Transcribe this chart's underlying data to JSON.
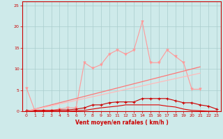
{
  "xlabel": "Vent moyen/en rafales ( km/h )",
  "background_color": "#ceeaea",
  "grid_color": "#aacccc",
  "x_values": [
    0,
    1,
    2,
    3,
    4,
    5,
    6,
    7,
    8,
    9,
    10,
    11,
    12,
    13,
    14,
    15,
    16,
    17,
    18,
    19,
    20,
    21,
    22,
    23
  ],
  "ylim": [
    0,
    26
  ],
  "xlim": [
    -0.5,
    23.5
  ],
  "yticks": [
    0,
    5,
    10,
    15,
    20,
    25
  ],
  "xticks": [
    0,
    1,
    2,
    3,
    4,
    5,
    6,
    7,
    8,
    9,
    10,
    11,
    12,
    13,
    14,
    15,
    16,
    17,
    18,
    19,
    20,
    21,
    22,
    23
  ],
  "line_rafales_y": [
    5.5,
    0.2,
    0.2,
    0.2,
    0.5,
    0.8,
    0.8,
    11.5,
    10.2,
    11.0,
    13.5,
    14.5,
    13.5,
    14.5,
    21.2,
    11.5,
    11.5,
    14.5,
    13.0,
    11.5,
    5.2,
    5.2,
    null,
    null
  ],
  "line_rafales_color": "#ff9999",
  "line_moyen_y": [
    0.2,
    0.2,
    0.2,
    0.2,
    0.3,
    0.3,
    0.5,
    0.8,
    1.5,
    1.5,
    2.0,
    2.2,
    2.2,
    2.2,
    3.0,
    3.0,
    3.0,
    3.0,
    2.5,
    2.0,
    2.0,
    1.5,
    1.2,
    0.5
  ],
  "line_moyen_color": "#cc0000",
  "line_trend1_x": [
    0,
    21
  ],
  "line_trend1_y": [
    0.0,
    10.5
  ],
  "line_trend1_color": "#ff7777",
  "line_trend2_x": [
    0,
    21
  ],
  "line_trend2_y": [
    0.0,
    9.0
  ],
  "line_trend2_color": "#ffbbbb",
  "line_bottom_y": [
    0.0,
    0.0,
    0.0,
    0.0,
    0.0,
    0.0,
    0.1,
    0.2,
    0.5,
    0.8,
    1.0,
    1.2,
    1.5,
    1.5,
    1.5,
    1.5,
    1.5,
    1.2,
    1.0,
    0.5,
    0.2,
    0.1,
    0.0,
    0.0
  ],
  "line_bottom_color": "#dd0000"
}
